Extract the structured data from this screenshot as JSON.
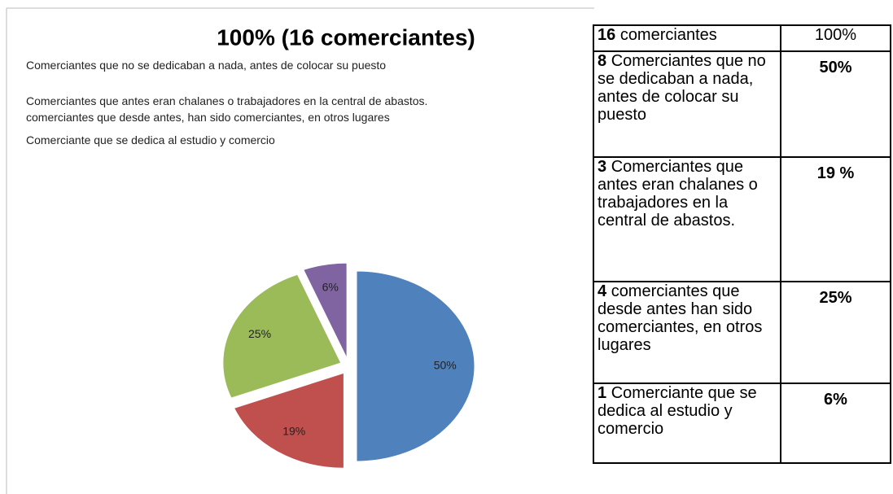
{
  "chart_data": {
    "type": "pie",
    "title": "100% (16 comerciantes)",
    "categories": [
      "Comerciantes que no se dedicaban a nada, antes de colocar su puesto",
      "Comerciantes que antes eran chalanes o trabajadores en la central de abastos.",
      "comerciantes que desde antes, han sido comerciantes, en otros lugares",
      "Comerciante que se dedica al estudio y comercio"
    ],
    "values": [
      50,
      19,
      25,
      6
    ],
    "value_labels": [
      "50%",
      "19%",
      "25%",
      "6%"
    ],
    "colors": [
      "#4f81bd",
      "#c0504d",
      "#9bbb59",
      "#8064a2"
    ]
  },
  "table": {
    "rows": [
      {
        "count": "16",
        "text": "comerciantes",
        "pct": "100%"
      },
      {
        "count": "8",
        "text": "Comerciantes que no se dedicaban a nada, antes de colocar su puesto",
        "pct": "50%"
      },
      {
        "count": "3",
        "text": "Comerciantes que antes eran chalanes o trabajadores en la central de abastos.",
        "pct": "19 %"
      },
      {
        "count": "4",
        "text": "comerciantes que desde antes han sido comerciantes, en otros lugares",
        "pct": "25%"
      },
      {
        "count": "1",
        "text": "Comerciante que se dedica al estudio y comercio",
        "pct": "6%"
      }
    ]
  }
}
